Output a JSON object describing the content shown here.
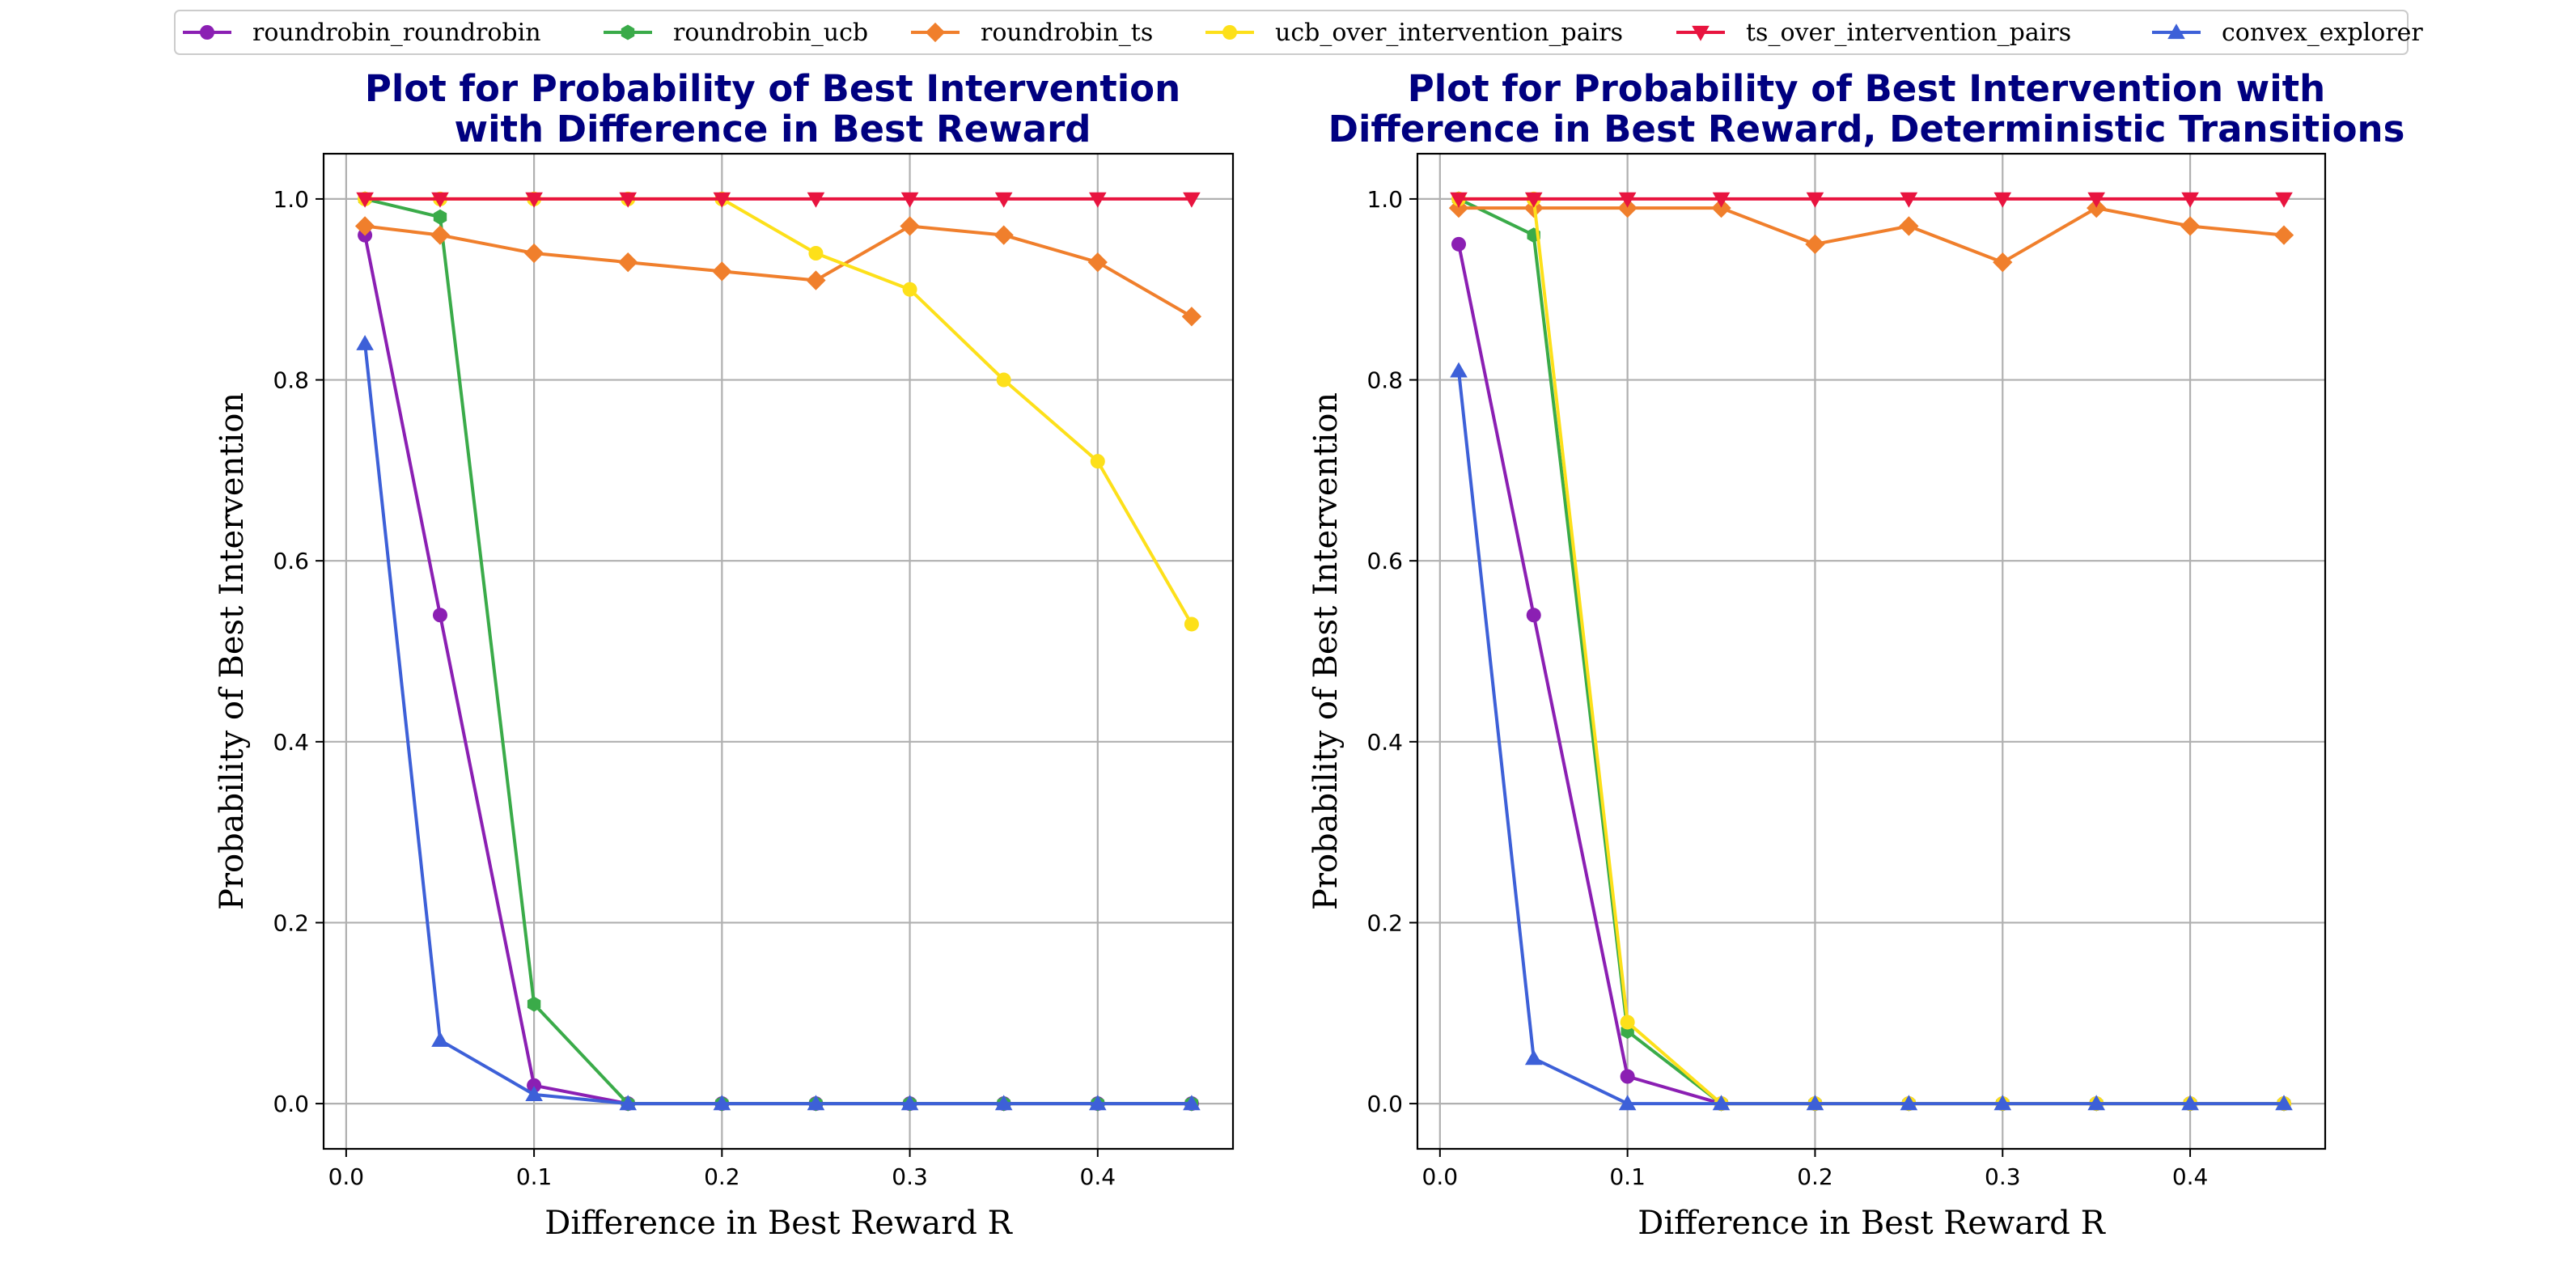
{
  "legend": [
    {
      "name": "roundrobin_roundrobin",
      "color": "#8b1fb3",
      "marker": "circle"
    },
    {
      "name": "roundrobin_ucb",
      "color": "#3aab49",
      "marker": "hexagon"
    },
    {
      "name": "roundrobin_ts",
      "color": "#f07f2c",
      "marker": "diamond"
    },
    {
      "name": "ucb_over_intervention_pairs",
      "color": "#fde01a",
      "marker": "circle"
    },
    {
      "name": "ts_over_intervention_pairs",
      "color": "#e8143f",
      "marker": "triangle-down"
    },
    {
      "name": "convex_explorer",
      "color": "#3d60d8",
      "marker": "triangle-up"
    }
  ],
  "chart_data": [
    {
      "type": "line",
      "title": "Plot for Probability of Best Intervention\nwith Difference in Best Reward",
      "xlabel": "Difference in Best Reward R",
      "ylabel": "Probability of Best Intervention",
      "xlim": [
        -0.012,
        0.472
      ],
      "ylim": [
        -0.05,
        1.05
      ],
      "xticks": [
        0.0,
        0.1,
        0.2,
        0.3,
        0.4
      ],
      "yticks": [
        0.0,
        0.2,
        0.4,
        0.6,
        0.8,
        1.0
      ],
      "grid": true,
      "x": [
        0.01,
        0.05,
        0.1,
        0.15,
        0.2,
        0.25,
        0.3,
        0.35,
        0.4,
        0.45
      ],
      "series": [
        {
          "name": "roundrobin_roundrobin",
          "values": [
            0.96,
            0.54,
            0.02,
            0.0,
            0.0,
            0.0,
            0.0,
            0.0,
            0.0,
            0.0
          ]
        },
        {
          "name": "roundrobin_ucb",
          "values": [
            1.0,
            0.98,
            0.11,
            0.0,
            0.0,
            0.0,
            0.0,
            0.0,
            0.0,
            0.0
          ]
        },
        {
          "name": "roundrobin_ts",
          "values": [
            0.97,
            0.96,
            0.94,
            0.93,
            0.92,
            0.91,
            0.97,
            0.96,
            0.93,
            0.87
          ]
        },
        {
          "name": "ucb_over_intervention_pairs",
          "values": [
            1.0,
            1.0,
            1.0,
            1.0,
            1.0,
            0.94,
            0.9,
            0.8,
            0.71,
            0.53
          ]
        },
        {
          "name": "ts_over_intervention_pairs",
          "values": [
            1.0,
            1.0,
            1.0,
            1.0,
            1.0,
            1.0,
            1.0,
            1.0,
            1.0,
            1.0
          ]
        },
        {
          "name": "convex_explorer",
          "values": [
            0.84,
            0.07,
            0.01,
            0.0,
            0.0,
            0.0,
            0.0,
            0.0,
            0.0,
            0.0
          ]
        }
      ]
    },
    {
      "type": "line",
      "title": "Plot for Probability of Best Intervention with\nDifference in Best Reward, Deterministic Transitions",
      "xlabel": "Difference in Best Reward R",
      "ylabel": "Probability of Best Intervention",
      "xlim": [
        -0.012,
        0.472
      ],
      "ylim": [
        -0.05,
        1.05
      ],
      "xticks": [
        0.0,
        0.1,
        0.2,
        0.3,
        0.4
      ],
      "yticks": [
        0.0,
        0.2,
        0.4,
        0.6,
        0.8,
        1.0
      ],
      "grid": true,
      "x": [
        0.01,
        0.05,
        0.1,
        0.15,
        0.2,
        0.25,
        0.3,
        0.35,
        0.4,
        0.45
      ],
      "series": [
        {
          "name": "roundrobin_roundrobin",
          "values": [
            0.95,
            0.54,
            0.03,
            0.0,
            0.0,
            0.0,
            0.0,
            0.0,
            0.0,
            0.0
          ]
        },
        {
          "name": "roundrobin_ucb",
          "values": [
            1.0,
            0.96,
            0.08,
            0.0,
            0.0,
            0.0,
            0.0,
            0.0,
            0.0,
            0.0
          ]
        },
        {
          "name": "roundrobin_ts",
          "values": [
            0.99,
            0.99,
            0.99,
            0.99,
            0.95,
            0.97,
            0.93,
            0.99,
            0.97,
            0.96
          ]
        },
        {
          "name": "ucb_over_intervention_pairs",
          "values": [
            1.0,
            1.0,
            0.09,
            0.0,
            0.0,
            0.0,
            0.0,
            0.0,
            0.0,
            0.0
          ]
        },
        {
          "name": "ts_over_intervention_pairs",
          "values": [
            1.0,
            1.0,
            1.0,
            1.0,
            1.0,
            1.0,
            1.0,
            1.0,
            1.0,
            1.0
          ]
        },
        {
          "name": "convex_explorer",
          "values": [
            0.81,
            0.05,
            0.0,
            0.0,
            0.0,
            0.0,
            0.0,
            0.0,
            0.0,
            0.0
          ]
        }
      ]
    }
  ]
}
